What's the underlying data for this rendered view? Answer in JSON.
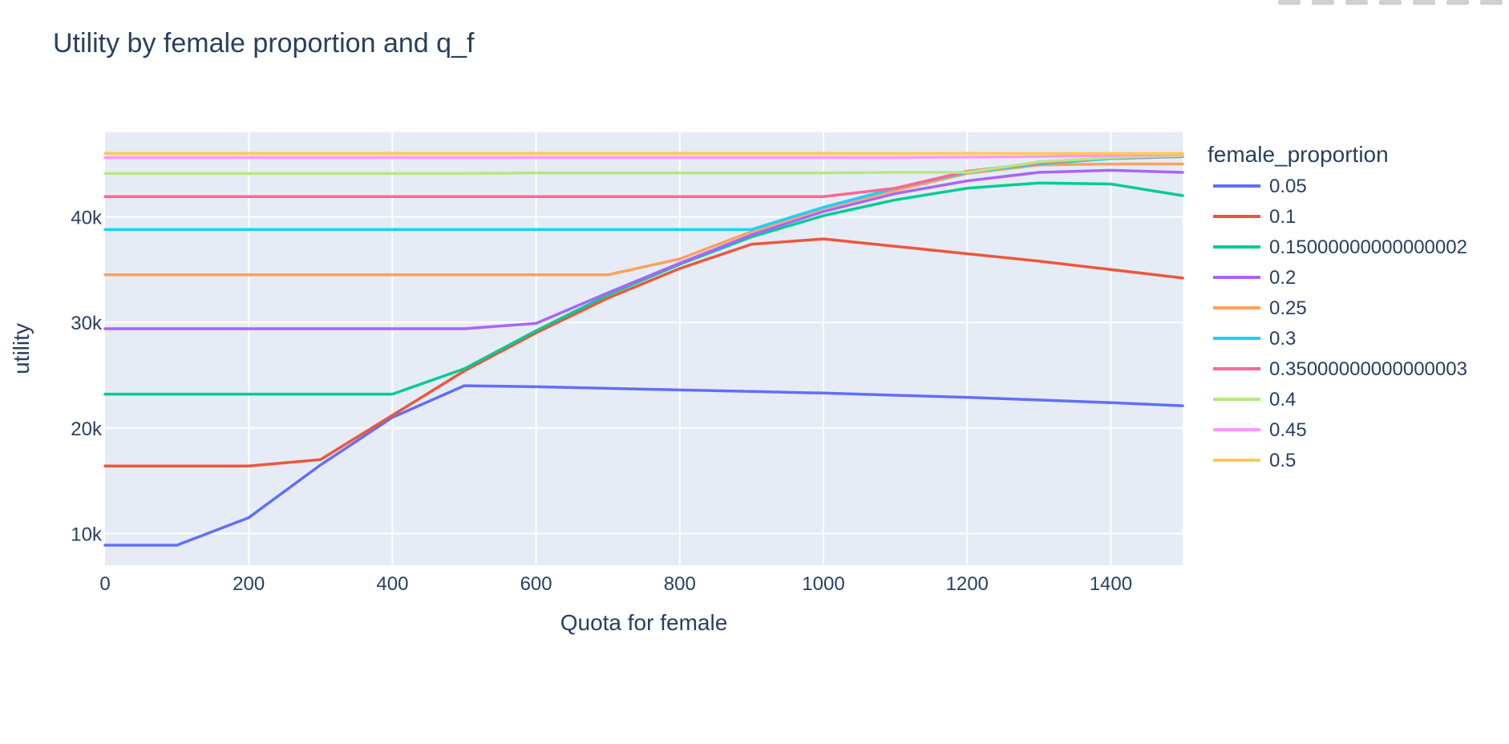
{
  "chart_data": {
    "type": "line",
    "title": "Utility by female proportion and q_f",
    "xlabel": "Quota for female",
    "ylabel": "utility",
    "xlim": [
      0,
      1500
    ],
    "ylim": [
      7000,
      48000
    ],
    "x_ticks": [
      0,
      200,
      400,
      600,
      800,
      1000,
      1200,
      1400
    ],
    "x_tick_labels": [
      "0",
      "200",
      "400",
      "600",
      "800",
      "1000",
      "1200",
      "1400"
    ],
    "y_ticks": [
      10000,
      20000,
      30000,
      40000
    ],
    "y_tick_labels": [
      "10k",
      "20k",
      "30k",
      "40k"
    ],
    "grid": true,
    "legend_title": "female_proportion",
    "legend_position": "right",
    "x": [
      0,
      100,
      200,
      300,
      400,
      500,
      600,
      700,
      800,
      900,
      1000,
      1100,
      1200,
      1300,
      1400,
      1500
    ],
    "series": [
      {
        "name": "0.05",
        "color": "#636efa",
        "values": [
          8900,
          8900,
          11500,
          16500,
          21000,
          24000,
          23900,
          23750,
          23600,
          23450,
          23300,
          23100,
          22900,
          22650,
          22400,
          22100
        ]
      },
      {
        "name": "0.1",
        "color": "#ef553b",
        "values": [
          16400,
          16400,
          16400,
          17000,
          21200,
          25400,
          29000,
          32300,
          35100,
          37400,
          37900,
          37200,
          36500,
          35800,
          35000,
          34200
        ]
      },
      {
        "name": "0.15000000000000002",
        "color": "#00cc96",
        "values": [
          23200,
          23200,
          23200,
          23200,
          23200,
          25600,
          29200,
          32600,
          35500,
          38100,
          40100,
          41600,
          42700,
          43200,
          43100,
          42000
        ]
      },
      {
        "name": "0.2",
        "color": "#ab63fa",
        "values": [
          29400,
          29400,
          29400,
          29400,
          29400,
          29400,
          29900,
          32800,
          35600,
          38300,
          40500,
          42200,
          43400,
          44200,
          44400,
          44200
        ]
      },
      {
        "name": "0.25",
        "color": "#ffa15a",
        "values": [
          34500,
          34500,
          34500,
          34500,
          34500,
          34500,
          34500,
          34500,
          36000,
          38600,
          40800,
          42500,
          44100,
          44900,
          45000,
          45000
        ]
      },
      {
        "name": "0.3",
        "color": "#19d3f3",
        "values": [
          38800,
          38800,
          38800,
          38800,
          38800,
          38800,
          38800,
          38800,
          38800,
          38800,
          40900,
          42700,
          44200,
          45000,
          45500,
          45700
        ]
      },
      {
        "name": "0.35000000000000003",
        "color": "#ff6692",
        "values": [
          41900,
          41900,
          41900,
          41900,
          41900,
          41900,
          41900,
          41900,
          41900,
          41900,
          41900,
          42700,
          44300,
          45100,
          45600,
          45700
        ]
      },
      {
        "name": "0.4",
        "color": "#b6e880",
        "values": [
          44100,
          44100,
          44100,
          44100,
          44100,
          44100,
          44150,
          44150,
          44150,
          44150,
          44150,
          44200,
          44200,
          45200,
          45600,
          45800
        ]
      },
      {
        "name": "0.45",
        "color": "#ff97ff",
        "values": [
          45600,
          45600,
          45600,
          45600,
          45600,
          45600,
          45600,
          45600,
          45600,
          45600,
          45600,
          45600,
          45650,
          45700,
          45800,
          45900
        ]
      },
      {
        "name": "0.5",
        "color": "#fecb52",
        "values": [
          46000,
          46000,
          46000,
          46000,
          46000,
          46000,
          46000,
          46000,
          46000,
          46000,
          46000,
          46000,
          46000,
          46000,
          46000,
          46000
        ]
      }
    ]
  }
}
